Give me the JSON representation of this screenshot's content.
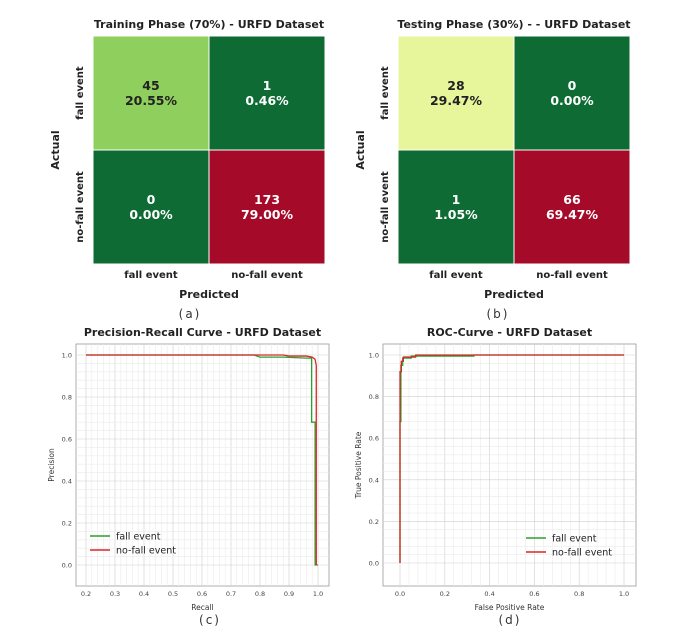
{
  "chart_data": [
    {
      "type": "heatmap",
      "panel": "(a)",
      "title": "Training Phase (70%) - URFD Dataset",
      "xlabel": "Predicted",
      "ylabel": "Actual",
      "x_categories": [
        "fall event",
        "no-fall event"
      ],
      "y_categories": [
        "fall event",
        "no-fall event"
      ],
      "cells": [
        [
          {
            "count": "45",
            "percent": "20.55%",
            "color": "#8fcf5e",
            "text_color": "#222222"
          },
          {
            "count": "1",
            "percent": "0.46%",
            "color": "#0e6b34",
            "text_color": "#ffffff"
          }
        ],
        [
          {
            "count": "0",
            "percent": "0.00%",
            "color": "#0e6b34",
            "text_color": "#ffffff"
          },
          {
            "count": "173",
            "percent": "79.00%",
            "color": "#a50a28",
            "text_color": "#ffffff"
          }
        ]
      ]
    },
    {
      "type": "heatmap",
      "panel": "(b)",
      "title": "Testing Phase (30%) -  - URFD Dataset",
      "xlabel": "Predicted",
      "ylabel": "Actual",
      "x_categories": [
        "fall event",
        "no-fall event"
      ],
      "y_categories": [
        "fall event",
        "no-fall event"
      ],
      "cells": [
        [
          {
            "count": "28",
            "percent": "29.47%",
            "color": "#e7f59b",
            "text_color": "#222222"
          },
          {
            "count": "0",
            "percent": "0.00%",
            "color": "#0e6b34",
            "text_color": "#ffffff"
          }
        ],
        [
          {
            "count": "1",
            "percent": "1.05%",
            "color": "#0e6b34",
            "text_color": "#ffffff"
          },
          {
            "count": "66",
            "percent": "69.47%",
            "color": "#a50a28",
            "text_color": "#ffffff"
          }
        ]
      ]
    },
    {
      "type": "line",
      "panel": "(c)",
      "title": "Precision-Recall Curve - URFD Dataset",
      "xlabel": "Recall",
      "ylabel": "Precision",
      "xlim": [
        0.2,
        1.0
      ],
      "ylim": [
        0.0,
        1.0
      ],
      "xticks": [
        "0.2",
        "0.3",
        "0.4",
        "0.5",
        "0.6",
        "0.7",
        "0.8",
        "0.9",
        "1.0"
      ],
      "yticks": [
        "0.0",
        "0.2",
        "0.4",
        "0.6",
        "0.8",
        "1.0"
      ],
      "grid": true,
      "legend": "lower-left",
      "series": [
        {
          "name": "fall event",
          "color": "#2ca02c",
          "x": [
            0.2,
            0.78,
            0.8,
            0.88,
            0.96,
            0.978,
            0.978,
            0.99,
            0.99,
            1.0
          ],
          "y": [
            1.0,
            1.0,
            0.99,
            0.99,
            0.985,
            0.985,
            0.68,
            0.68,
            0.0,
            0.0
          ]
        },
        {
          "name": "no-fall event",
          "color": "#d62728",
          "x": [
            0.2,
            0.8,
            0.88,
            0.9,
            0.96,
            0.98,
            0.99,
            0.994,
            0.994
          ],
          "y": [
            1.0,
            1.0,
            1.0,
            0.995,
            0.995,
            0.99,
            0.98,
            0.95,
            0.0
          ]
        }
      ]
    },
    {
      "type": "line",
      "panel": "(d)",
      "title": "ROC-Curve - URFD Dataset",
      "xlabel": "False Positive Rate",
      "ylabel": "True Positive Rate",
      "xlim": [
        0.0,
        1.0
      ],
      "ylim": [
        0.0,
        1.0
      ],
      "xticks": [
        "0.0",
        "0.2",
        "0.4",
        "0.6",
        "0.8",
        "1.0"
      ],
      "yticks": [
        "0.0",
        "0.2",
        "0.4",
        "0.6",
        "0.8",
        "1.0"
      ],
      "grid": true,
      "legend": "lower-right",
      "series": [
        {
          "name": "fall event",
          "color": "#2ca02c",
          "x": [
            0.0,
            0.0,
            0.004,
            0.004,
            0.012,
            0.012,
            0.05,
            0.05,
            0.33,
            0.33,
            1.0
          ],
          "y": [
            0.0,
            0.68,
            0.68,
            0.95,
            0.95,
            0.985,
            0.985,
            0.995,
            0.995,
            1.0,
            1.0
          ]
        },
        {
          "name": "no-fall event",
          "color": "#d62728",
          "x": [
            0.0,
            0.0,
            0.006,
            0.006,
            0.015,
            0.015,
            0.07,
            0.07,
            1.0
          ],
          "y": [
            0.0,
            0.92,
            0.92,
            0.97,
            0.97,
            0.99,
            0.99,
            1.0,
            1.0
          ]
        }
      ]
    }
  ]
}
